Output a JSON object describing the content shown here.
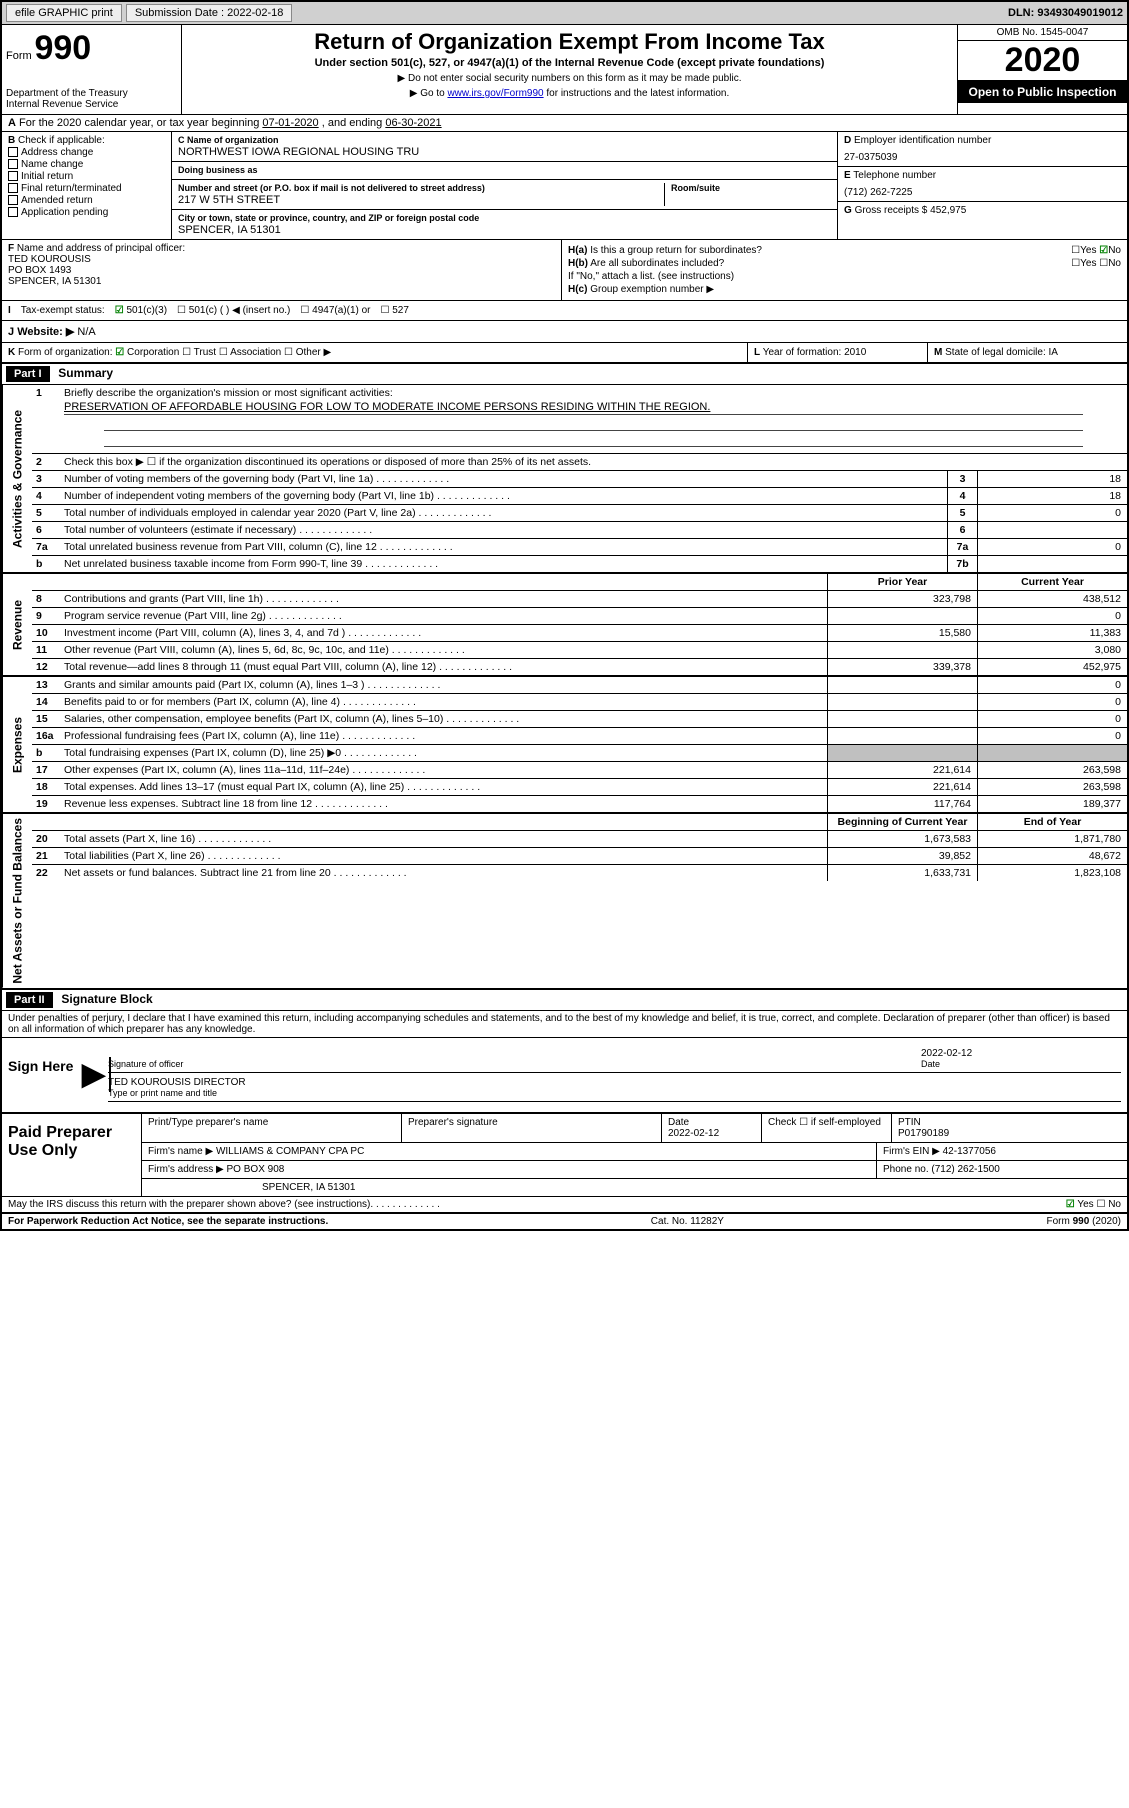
{
  "topbar": {
    "efile": "efile GRAPHIC print",
    "submission_label": "Submission Date : 2022-02-18",
    "dln": "DLN: 93493049019012"
  },
  "header": {
    "form_word": "Form",
    "form_num": "990",
    "dept": "Department of the Treasury\nInternal Revenue Service",
    "title": "Return of Organization Exempt From Income Tax",
    "subtitle": "Under section 501(c), 527, or 4947(a)(1) of the Internal Revenue Code (except private foundations)",
    "instr1": "Do not enter social security numbers on this form as it may be made public.",
    "instr2_pre": "Go to ",
    "instr2_link": "www.irs.gov/Form990",
    "instr2_post": " for instructions and the latest information.",
    "omb": "OMB No. 1545-0047",
    "year": "2020",
    "open": "Open to Public Inspection"
  },
  "a": {
    "text_pre": "For the 2020 calendar year, or tax year beginning ",
    "begin": "07-01-2020",
    "mid": " , and ending ",
    "end": "06-30-2021"
  },
  "b": {
    "label": "Check if applicable:",
    "opts": [
      "Address change",
      "Name change",
      "Initial return",
      "Final return/terminated",
      "Amended return",
      "Application pending"
    ]
  },
  "c": {
    "name_label": "Name of organization",
    "name": "NORTHWEST IOWA REGIONAL HOUSING TRU",
    "dba_label": "Doing business as",
    "dba": "",
    "addr_label": "Number and street (or P.O. box if mail is not delivered to street address)",
    "suite_label": "Room/suite",
    "addr": "217 W 5TH STREET",
    "city_label": "City or town, state or province, country, and ZIP or foreign postal code",
    "city": "SPENCER, IA  51301"
  },
  "d": {
    "label": "Employer identification number",
    "val": "27-0375039"
  },
  "e": {
    "label": "Telephone number",
    "val": "(712) 262-7225"
  },
  "g": {
    "label": "Gross receipts $ ",
    "val": "452,975"
  },
  "f": {
    "label": "Name and address of principal officer:",
    "name": "TED KOUROUSIS",
    "addr1": "PO BOX 1493",
    "addr2": "SPENCER, IA  51301"
  },
  "h": {
    "a_label": "Is this a group return for subordinates?",
    "b_label": "Are all subordinates included?",
    "b_note": "If \"No,\" attach a list. (see instructions)",
    "c_label": "Group exemption number ▶"
  },
  "i": {
    "label": "Tax-exempt status:",
    "opt1": "501(c)(3)",
    "opt2": "501(c) (   ) ◀ (insert no.)",
    "opt3": "4947(a)(1) or",
    "opt4": "527"
  },
  "j": {
    "label": "Website: ▶",
    "val": "N/A"
  },
  "k": {
    "label": "Form of organization:",
    "opts": [
      "Corporation",
      "Trust",
      "Association",
      "Other ▶"
    ]
  },
  "l": {
    "label": "Year of formation: ",
    "val": "2010"
  },
  "m": {
    "label": "State of legal domicile: ",
    "val": "IA"
  },
  "part1": {
    "hdr": "Part I",
    "title": "Summary",
    "l1_label": "Briefly describe the organization's mission or most significant activities:",
    "l1_val": "PRESERVATION OF AFFORDABLE HOUSING FOR LOW TO MODERATE INCOME PERSONS RESIDING WITHIN THE REGION.",
    "l2": "Check this box ▶ ☐  if the organization discontinued its operations or disposed of more than 25% of its net assets.",
    "lines_gov": [
      {
        "n": "3",
        "d": "Number of voting members of the governing body (Part VI, line 1a)",
        "b": "3",
        "v": "18"
      },
      {
        "n": "4",
        "d": "Number of independent voting members of the governing body (Part VI, line 1b)",
        "b": "4",
        "v": "18"
      },
      {
        "n": "5",
        "d": "Total number of individuals employed in calendar year 2020 (Part V, line 2a)",
        "b": "5",
        "v": "0"
      },
      {
        "n": "6",
        "d": "Total number of volunteers (estimate if necessary)",
        "b": "6",
        "v": ""
      },
      {
        "n": "7a",
        "d": "Total unrelated business revenue from Part VIII, column (C), line 12",
        "b": "7a",
        "v": "0"
      },
      {
        "n": "b",
        "d": "Net unrelated business taxable income from Form 990-T, line 39",
        "b": "7b",
        "v": ""
      }
    ],
    "prior_hdr": "Prior Year",
    "curr_hdr": "Current Year",
    "lines_rev": [
      {
        "n": "8",
        "d": "Contributions and grants (Part VIII, line 1h)",
        "p": "323,798",
        "c": "438,512"
      },
      {
        "n": "9",
        "d": "Program service revenue (Part VIII, line 2g)",
        "p": "",
        "c": "0"
      },
      {
        "n": "10",
        "d": "Investment income (Part VIII, column (A), lines 3, 4, and 7d )",
        "p": "15,580",
        "c": "11,383"
      },
      {
        "n": "11",
        "d": "Other revenue (Part VIII, column (A), lines 5, 6d, 8c, 9c, 10c, and 11e)",
        "p": "",
        "c": "3,080"
      },
      {
        "n": "12",
        "d": "Total revenue—add lines 8 through 11 (must equal Part VIII, column (A), line 12)",
        "p": "339,378",
        "c": "452,975"
      }
    ],
    "lines_exp": [
      {
        "n": "13",
        "d": "Grants and similar amounts paid (Part IX, column (A), lines 1–3 )",
        "p": "",
        "c": "0"
      },
      {
        "n": "14",
        "d": "Benefits paid to or for members (Part IX, column (A), line 4)",
        "p": "",
        "c": "0"
      },
      {
        "n": "15",
        "d": "Salaries, other compensation, employee benefits (Part IX, column (A), lines 5–10)",
        "p": "",
        "c": "0"
      },
      {
        "n": "16a",
        "d": "Professional fundraising fees (Part IX, column (A), line 11e)",
        "p": "",
        "c": "0"
      },
      {
        "n": "b",
        "d": "Total fundraising expenses (Part IX, column (D), line 25) ▶0",
        "p": "GREY",
        "c": "GREY"
      },
      {
        "n": "17",
        "d": "Other expenses (Part IX, column (A), lines 11a–11d, 11f–24e)",
        "p": "221,614",
        "c": "263,598"
      },
      {
        "n": "18",
        "d": "Total expenses. Add lines 13–17 (must equal Part IX, column (A), line 25)",
        "p": "221,614",
        "c": "263,598"
      },
      {
        "n": "19",
        "d": "Revenue less expenses. Subtract line 18 from line 12",
        "p": "117,764",
        "c": "189,377"
      }
    ],
    "begin_hdr": "Beginning of Current Year",
    "end_hdr": "End of Year",
    "lines_net": [
      {
        "n": "20",
        "d": "Total assets (Part X, line 16)",
        "p": "1,673,583",
        "c": "1,871,780"
      },
      {
        "n": "21",
        "d": "Total liabilities (Part X, line 26)",
        "p": "39,852",
        "c": "48,672"
      },
      {
        "n": "22",
        "d": "Net assets or fund balances. Subtract line 21 from line 20",
        "p": "1,633,731",
        "c": "1,823,108"
      }
    ],
    "side_gov": "Activities & Governance",
    "side_rev": "Revenue",
    "side_exp": "Expenses",
    "side_net": "Net Assets or Fund Balances"
  },
  "part2": {
    "hdr": "Part II",
    "title": "Signature Block",
    "perjury": "Under penalties of perjury, I declare that I have examined this return, including accompanying schedules and statements, and to the best of my knowledge and belief, it is true, correct, and complete. Declaration of preparer (other than officer) is based on all information of which preparer has any knowledge."
  },
  "sign": {
    "left": "Sign Here",
    "sig_label": "Signature of officer",
    "date_label": "Date",
    "date": "2022-02-12",
    "name": "TED KOUROUSIS  DIRECTOR",
    "name_label": "Type or print name and title"
  },
  "prep": {
    "left": "Paid Preparer Use Only",
    "h1": "Print/Type preparer's name",
    "h2": "Preparer's signature",
    "h3": "Date",
    "h3v": "2022-02-12",
    "h4": "Check ☐ if self-employed",
    "h5": "PTIN",
    "h5v": "P01790189",
    "firm_label": "Firm's name    ▶",
    "firm": "WILLIAMS & COMPANY CPA PC",
    "ein_label": "Firm's EIN ▶",
    "ein": "42-1377056",
    "addr_label": "Firm's address ▶",
    "addr1": "PO BOX 908",
    "addr2": "SPENCER, IA  51301",
    "phone_label": "Phone no. ",
    "phone": "(712) 262-1500"
  },
  "discuss": {
    "q": "May the IRS discuss this return with the preparer shown above? (see instructions)",
    "yes": "Yes",
    "no": "No"
  },
  "footer": {
    "left": "For Paperwork Reduction Act Notice, see the separate instructions.",
    "mid": "Cat. No. 11282Y",
    "right": "Form 990 (2020)"
  }
}
